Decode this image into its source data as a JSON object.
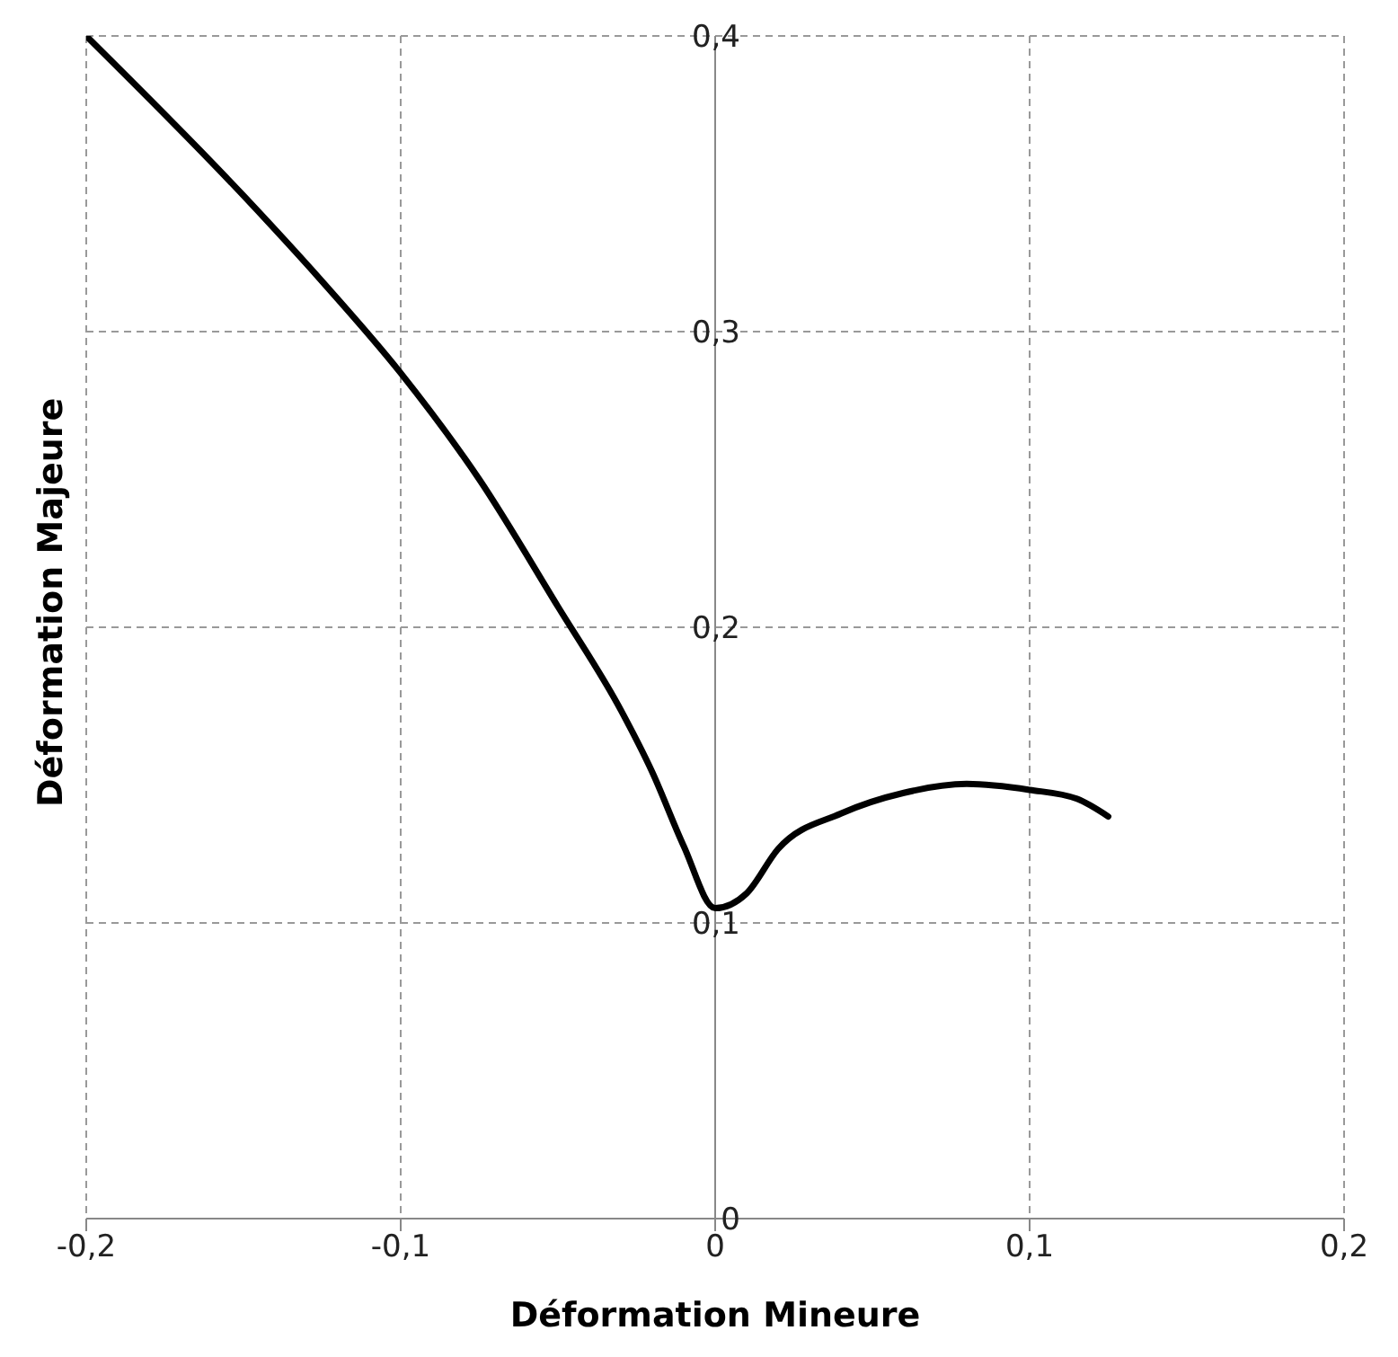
{
  "chart_data": {
    "type": "line",
    "xlabel": "Déformation Mineure",
    "ylabel": "Déformation Majeure",
    "x": [
      -0.2,
      -0.15,
      -0.125,
      -0.1,
      -0.075,
      -0.05,
      -0.03,
      -0.02,
      -0.01,
      0,
      0.01,
      0.02,
      0.04,
      0.06,
      0.08,
      0.1,
      0.115,
      0.125
    ],
    "series": [
      {
        "color": "#000000",
        "values": [
          0.4,
          0.346,
          0.317,
          0.286,
          0.25,
          0.207,
          0.172,
          0.151,
          0.126,
          0.105,
          0.11,
          0.125,
          0.137,
          0.144,
          0.147,
          0.145,
          0.142,
          0.136
        ]
      }
    ],
    "xlim": [
      -0.2,
      0.2
    ],
    "xticks": [
      {
        "value": -0.2,
        "label": "-0,2"
      },
      {
        "value": -0.1,
        "label": "-0,1"
      },
      {
        "value": 0,
        "label": "0"
      },
      {
        "value": 0.1,
        "label": "0,1"
      },
      {
        "value": 0.2,
        "label": "0,2"
      }
    ],
    "ylim": [
      0,
      0.4
    ],
    "yticks": [
      {
        "value": 0,
        "label": "0"
      },
      {
        "value": 0.1,
        "label": "0,1"
      },
      {
        "value": 0.2,
        "label": "0,2"
      },
      {
        "value": 0.3,
        "label": "0,3"
      },
      {
        "value": 0.4,
        "label": "0,4"
      }
    ],
    "grid": true,
    "marker": "none",
    "line_style": "solid"
  }
}
